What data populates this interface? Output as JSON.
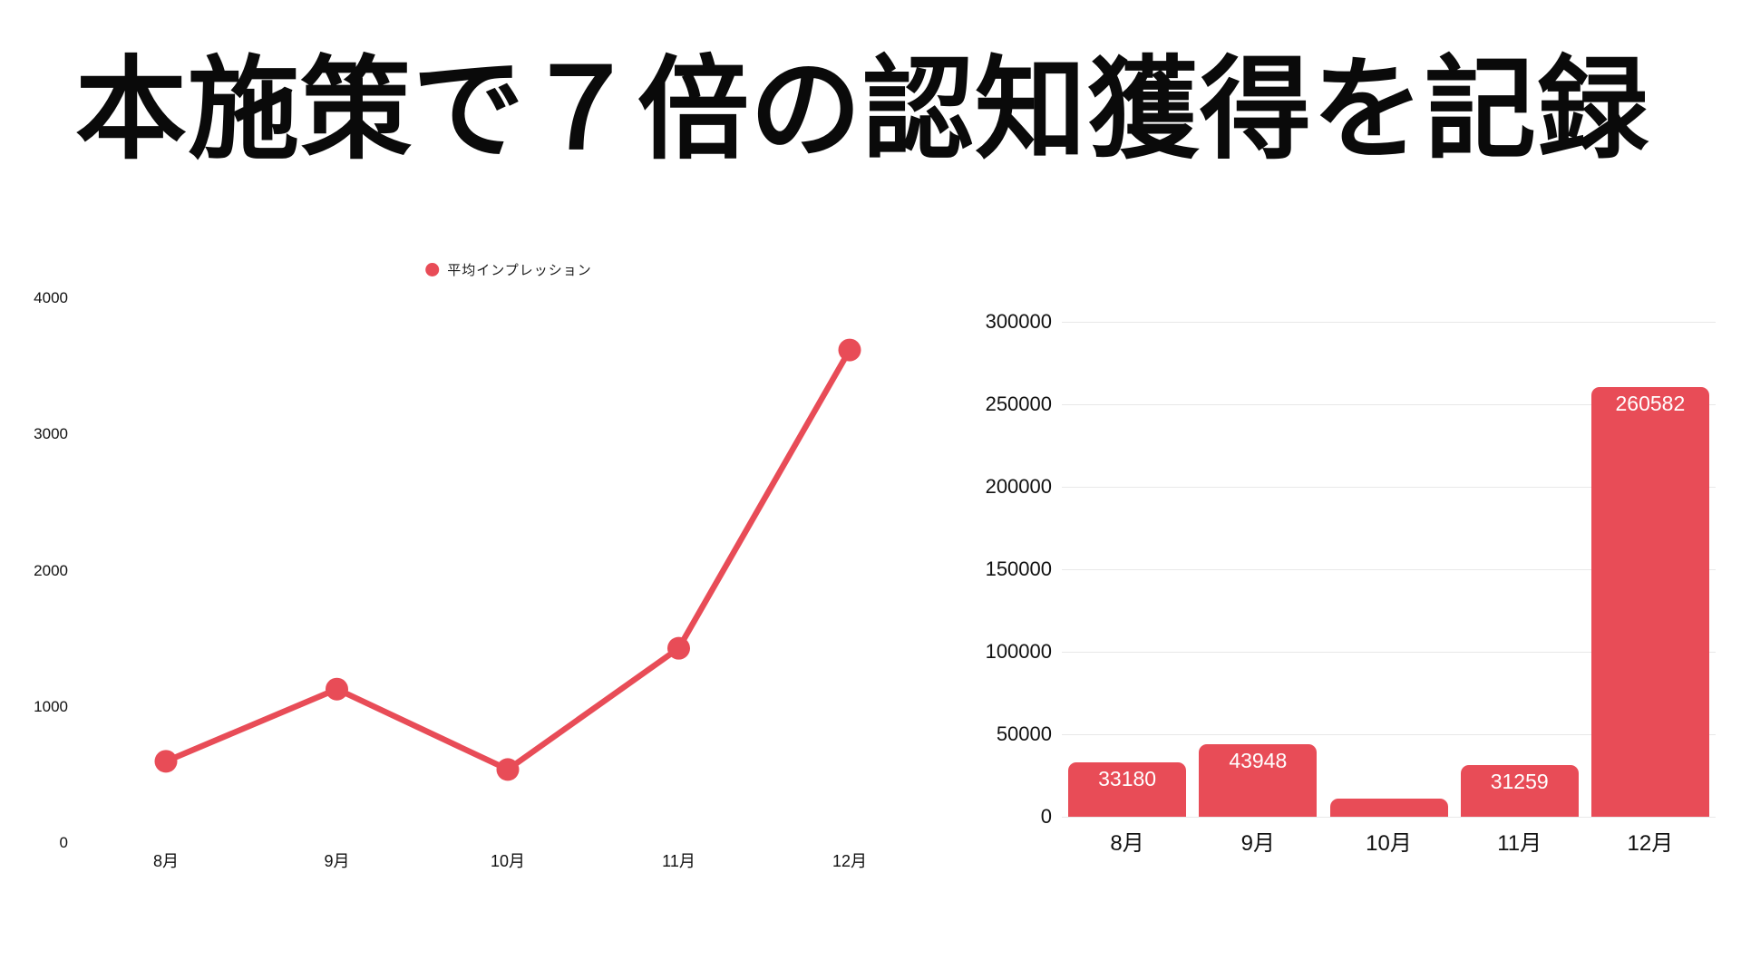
{
  "title": "本施策で７倍の認知獲得を記録",
  "colors": {
    "background": "#ffffff",
    "accent": "#e84c57",
    "gridline": "#e8e8e8",
    "text": "#111111",
    "bar_label_text": "#ffffff"
  },
  "chart_data": [
    {
      "id": "average-impressions-line",
      "type": "line",
      "title": "",
      "legend_position": "top-center",
      "categories": [
        "8月",
        "9月",
        "10月",
        "11月",
        "12月"
      ],
      "series": [
        {
          "name": "平均インプレッション",
          "values": [
            600,
            1130,
            540,
            1430,
            3620
          ]
        }
      ],
      "ylim": [
        0,
        4000
      ],
      "yticks": [
        0,
        1000,
        2000,
        3000,
        4000
      ],
      "grid": false,
      "point_markers": true
    },
    {
      "id": "total-impressions-bar",
      "type": "bar",
      "title": "",
      "categories": [
        "8月",
        "9月",
        "10月",
        "11月",
        "12月"
      ],
      "values": [
        33180,
        43948,
        11000,
        31259,
        260582
      ],
      "data_labels": [
        "33180",
        "43948",
        "",
        "31259",
        "260582"
      ],
      "ylim": [
        0,
        300000
      ],
      "yticks": [
        0,
        50000,
        100000,
        150000,
        200000,
        250000,
        300000
      ],
      "grid": true,
      "legend_position": "none"
    }
  ]
}
